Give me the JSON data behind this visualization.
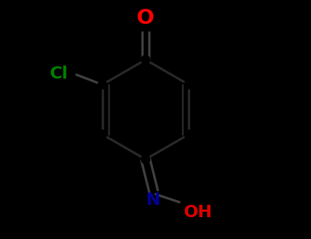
{
  "background_color": "#000000",
  "bond_color": "#303030",
  "bond_color_bright": "#606060",
  "bond_width": 2.5,
  "atom_colors": {
    "O_ketone": "#ff0000",
    "Cl": "#008000",
    "N": "#000099",
    "O_hydroxyl": "#dd0000",
    "C": "#aaaaaa"
  },
  "atom_fontsizes": {
    "O_ketone": 22,
    "Cl": 18,
    "N": 18,
    "O_hydroxyl": 18
  },
  "figsize": [
    4.55,
    3.5
  ],
  "dpi": 100
}
